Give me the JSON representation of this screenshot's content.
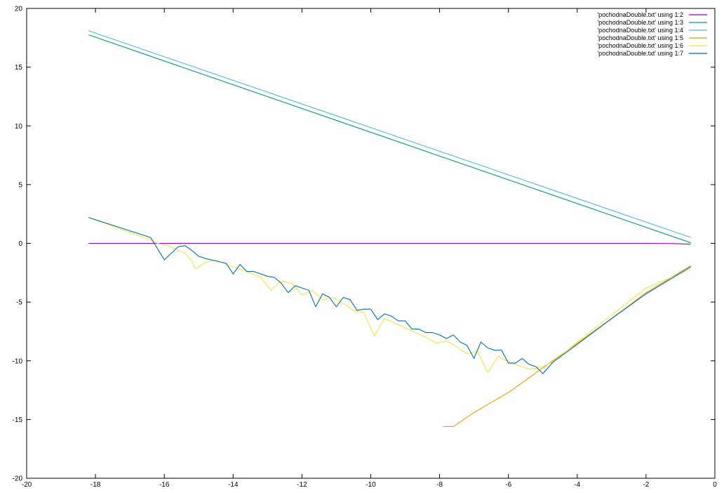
{
  "chart_data": {
    "type": "line",
    "title": "",
    "xlabel": "",
    "ylabel": "",
    "xlim": [
      -20,
      0
    ],
    "ylim": [
      -20,
      20
    ],
    "xticks": [
      -20,
      -18,
      -16,
      -14,
      -12,
      -10,
      -8,
      -6,
      -4,
      -2,
      0
    ],
    "yticks": [
      -20,
      -15,
      -10,
      -5,
      0,
      5,
      10,
      15,
      20
    ],
    "grid": false,
    "legend_position": "top-right",
    "series": [
      {
        "name": "'pochodnaDouble.txt' using 1:2",
        "color": "#9400d3",
        "x": [
          -18.2,
          -14,
          -10,
          -6,
          -2,
          -1.2,
          -0.7
        ],
        "y": [
          0.0,
          0.0,
          0.0,
          0.0,
          0.0,
          -0.02,
          -0.08
        ]
      },
      {
        "name": "'pochodnaDouble.txt' using 1:3",
        "color": "#009e73",
        "x": [
          -18.2,
          -0.7
        ],
        "y": [
          17.75,
          0.05
        ]
      },
      {
        "name": "'pochodnaDouble.txt' using 1:4",
        "color": "#56b4e9",
        "x": [
          -18.2,
          -0.7
        ],
        "y": [
          18.1,
          0.5
        ]
      },
      {
        "name": "'pochodnaDouble.txt' using 1:5",
        "color": "#e69f00",
        "x": [
          -7.9,
          -7.6,
          -7.0,
          -6.0,
          -5.0,
          -4.0,
          -3.0,
          -2.0,
          -0.7
        ],
        "y": [
          -15.6,
          -15.6,
          -14.4,
          -12.7,
          -10.6,
          -8.5,
          -6.4,
          -4.2,
          -1.9
        ]
      },
      {
        "name": "'pochodnaDouble.txt' using 1:6",
        "color": "#f0e442",
        "x": [
          -18.2,
          -16.4,
          -16.2,
          -15.9,
          -15.6,
          -15.4,
          -15.2,
          -15.1,
          -14.8,
          -14.5,
          -14.2,
          -14.0,
          -13.7,
          -13.2,
          -12.9,
          -12.6,
          -12.3,
          -12.0,
          -11.7,
          -11.4,
          -11.1,
          -10.8,
          -10.5,
          -10.2,
          -9.9,
          -9.6,
          -9.3,
          -9.0,
          -8.7,
          -8.4,
          -8.1,
          -7.8,
          -7.5,
          -7.2,
          -6.9,
          -6.6,
          -6.3,
          -6.0,
          -5.7,
          -5.4,
          -5.1,
          -4.7,
          -4.0,
          -3.0,
          -2.0,
          -0.7
        ],
        "y": [
          2.2,
          0.3,
          0.0,
          -0.2,
          -0.6,
          -0.8,
          -1.5,
          -2.2,
          -1.6,
          -1.4,
          -1.8,
          -2.0,
          -2.3,
          -2.9,
          -4.0,
          -3.2,
          -3.4,
          -4.4,
          -4.0,
          -4.8,
          -4.6,
          -5.1,
          -5.7,
          -5.9,
          -7.9,
          -6.4,
          -6.8,
          -7.2,
          -7.6,
          -8.0,
          -8.5,
          -8.3,
          -8.8,
          -9.4,
          -9.2,
          -11.0,
          -9.6,
          -10.1,
          -10.4,
          -10.7,
          -10.6,
          -10.1,
          -8.4,
          -6.1,
          -3.8,
          -2.2
        ]
      },
      {
        "name": "'pochodnaDouble.txt' using 1:7",
        "color": "#0072b2",
        "x": [
          -18.2,
          -16.4,
          -16.0,
          -15.6,
          -15.4,
          -15.2,
          -15.0,
          -14.8,
          -14.5,
          -14.2,
          -14.0,
          -13.8,
          -13.6,
          -13.4,
          -13.0,
          -12.8,
          -12.6,
          -12.4,
          -12.2,
          -12.0,
          -11.8,
          -11.6,
          -11.4,
          -11.2,
          -11.0,
          -10.8,
          -10.6,
          -10.4,
          -10.2,
          -10.0,
          -9.8,
          -9.6,
          -9.4,
          -9.2,
          -9.0,
          -8.8,
          -8.6,
          -8.4,
          -8.2,
          -8.0,
          -7.8,
          -7.6,
          -7.4,
          -7.2,
          -7.0,
          -6.8,
          -6.6,
          -6.4,
          -6.2,
          -6.0,
          -5.8,
          -5.6,
          -5.4,
          -5.2,
          -5.0,
          -4.7,
          -4.0,
          -3.0,
          -2.0,
          -0.7
        ],
        "y": [
          2.2,
          0.5,
          -1.4,
          -0.3,
          -0.2,
          -0.6,
          -1.1,
          -1.3,
          -1.5,
          -1.7,
          -2.6,
          -1.8,
          -2.4,
          -2.4,
          -2.8,
          -2.9,
          -3.4,
          -4.2,
          -3.6,
          -3.8,
          -4.0,
          -5.4,
          -4.3,
          -4.6,
          -5.4,
          -4.6,
          -4.8,
          -5.7,
          -5.6,
          -5.6,
          -6.5,
          -6.0,
          -6.2,
          -6.6,
          -6.6,
          -7.3,
          -7.3,
          -7.6,
          -7.6,
          -7.8,
          -8.1,
          -7.8,
          -8.4,
          -8.7,
          -9.8,
          -8.4,
          -8.9,
          -9.1,
          -9.1,
          -10.2,
          -10.2,
          -9.8,
          -10.3,
          -10.5,
          -11.1,
          -10.1,
          -8.6,
          -6.4,
          -4.3,
          -2.0
        ]
      }
    ]
  }
}
